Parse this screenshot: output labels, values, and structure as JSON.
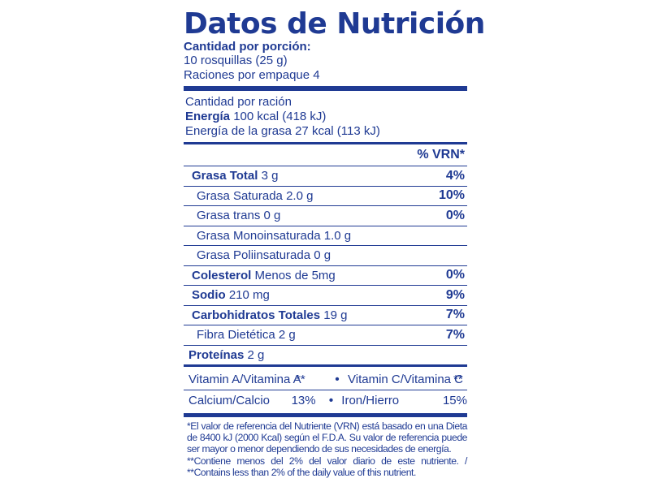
{
  "label": {
    "title": "Datos de Nutrición",
    "serving_header": "Cantidad por porción:",
    "serving_size": "10 rosquillas (25 g)",
    "servings_per_container": "Raciones por empaque 4",
    "amount_per_serving": "Cantidad por ración",
    "energy_label": "Energía",
    "energy_value": "100 kcal (418 kJ)",
    "energy_fat": "Energía de la grasa 27 kcal (113 kJ)",
    "vrn_header": "% VRN*",
    "nutrients": [
      {
        "label": "Grasa Total",
        "value": "3 g",
        "pct": "4%",
        "bold": true,
        "level": 0
      },
      {
        "label": "Grasa Saturada",
        "value": "2.0 g",
        "pct": "10%",
        "bold": false,
        "level": 1
      },
      {
        "label": "Grasa trans",
        "value": "0 g",
        "pct": "0%",
        "bold": false,
        "level": 1
      },
      {
        "label": "Grasa Monoinsaturada",
        "value": "1.0 g",
        "pct": "",
        "bold": false,
        "level": 1
      },
      {
        "label": "Grasa Poliinsaturada",
        "value": "0 g",
        "pct": "",
        "bold": false,
        "level": 1
      },
      {
        "label": "Colesterol",
        "value": "Menos de 5mg",
        "pct": "0%",
        "bold": true,
        "level": 0
      },
      {
        "label": "Sodio",
        "value": "210 mg",
        "pct": "9%",
        "bold": true,
        "level": 0
      },
      {
        "label": "Carbohidratos Totales",
        "value": "19 g",
        "pct": "7%",
        "bold": true,
        "level": 0
      },
      {
        "label": "Fibra Dietética",
        "value": " 2 g",
        "pct": "7%",
        "bold": false,
        "level": 1
      }
    ],
    "protein_label": "Proteínas",
    "protein_value": "2 g",
    "vitamins": {
      "row1": {
        "a_label": "Vitamin A/Vitamina A",
        "a_value": "**",
        "b_label": "Vitamin C/Vitamina C",
        "b_value": "**"
      },
      "row2": {
        "a_label": "Calcium/Calcio",
        "a_value": "13%",
        "b_label": "Iron/Hierro",
        "b_value": "15%"
      },
      "separator": "•"
    },
    "footnote_1": "*El valor de referencia del Nutriente (VRN) está basado en una Dieta de 8400 kJ (2000 Kcal) según el F.D.A.  Su valor de referencia puede ser mayor o menor dependiendo de sus necesidades de energía.",
    "footnote_2": "**Contiene menos del 2% del valor diario de este nutriente. / **Contains less than 2% of the daily value of this nutrient.",
    "colors": {
      "ink": "#1f3a93",
      "background": "#ffffff"
    }
  }
}
